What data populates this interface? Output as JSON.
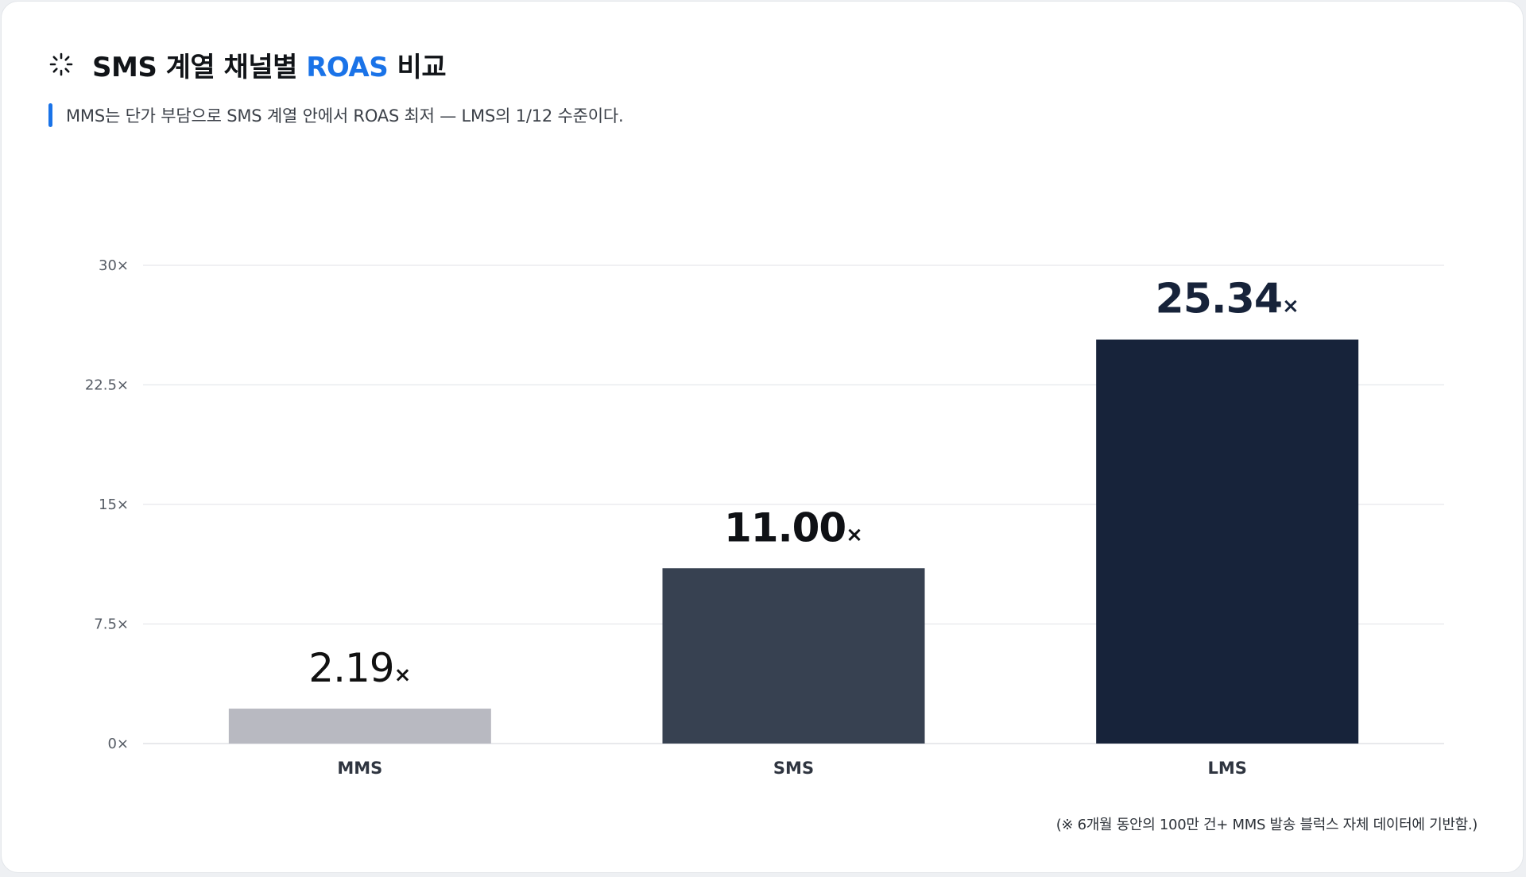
{
  "header": {
    "title_main": "SMS 계열 채널별 ",
    "title_accent": "ROAS",
    "title_end": " 비교",
    "subtitle": "MMS는 단가 부담으로 SMS 계열 안에서 ROAS 최저 — LMS의 1/12 수준이다.",
    "icon": "loading-spinner-icon"
  },
  "colors": {
    "accent": "#1a73e8",
    "bar_mms": "#b8b9c1",
    "bar_sms": "#374151",
    "bar_lms": "#17233a",
    "grid": "#e6e8ec"
  },
  "chart_data": {
    "type": "bar",
    "categories": [
      "MMS",
      "SMS",
      "LMS"
    ],
    "values": [
      2.19,
      11.0,
      25.34
    ],
    "value_labels": [
      "2.19",
      "11.00",
      "25.34"
    ],
    "value_suffix": "×",
    "ylim": [
      0,
      30
    ],
    "yticks": [
      "0×",
      "7.5×",
      "15×",
      "22.5×",
      "30×"
    ],
    "ytick_values": [
      0,
      7.5,
      15,
      22.5,
      30
    ],
    "grid": true,
    "bar_colors": [
      "#b8b9c1",
      "#374151",
      "#17233a"
    ]
  },
  "footnote": "(※ 6개월 동안의 100만 건+ MMS 발송 블럭스 자체 데이터에 기반함.)"
}
